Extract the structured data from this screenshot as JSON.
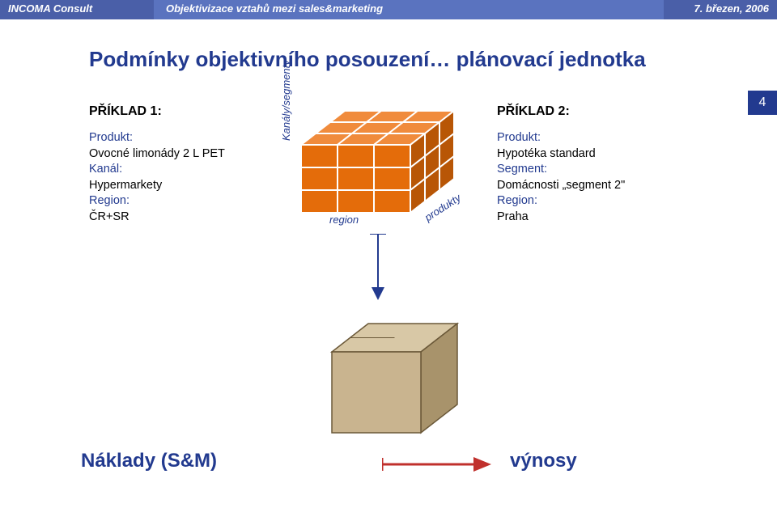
{
  "header": {
    "left": "INCOMA Consult",
    "mid": "Objektivizace vztahů mezi sales&marketing",
    "right": "7. březen, 2006",
    "bg_left": "#4a5fa8",
    "bg_mid": "#5a73bf",
    "bg_right": "#4a5fa8"
  },
  "page_number": "4",
  "title": "Podmínky objektivního posouzení… plánovací jednotka",
  "example1": {
    "label": "PŘÍKLAD 1:",
    "lines": [
      {
        "txt": "Produkt:",
        "color": "#223a8f"
      },
      {
        "txt": "Ovocné limonády 2 L PET",
        "color": "#000"
      },
      {
        "txt": "Kanál:",
        "color": "#223a8f"
      },
      {
        "txt": "Hypermarkety",
        "color": "#000"
      },
      {
        "txt": "Region:",
        "color": "#223a8f"
      },
      {
        "txt": "ČR+SR",
        "color": "#000"
      }
    ]
  },
  "example2": {
    "label": "PŘÍKLAD 2:",
    "lines": [
      {
        "txt": "Produkt:",
        "color": "#223a8f"
      },
      {
        "txt": "Hypotéka standard",
        "color": "#000"
      },
      {
        "txt": "Segment:",
        "color": "#223a8f"
      },
      {
        "txt": "Domácnosti „segment 2\"",
        "color": "#000"
      },
      {
        "txt": "Region:",
        "color": "#223a8f"
      },
      {
        "txt": "Praha",
        "color": "#000"
      }
    ]
  },
  "cube": {
    "axis_y": "Kanály/segmenty",
    "axis_x": "region",
    "axis_z": "produkty",
    "face_fill": "#e46c0a",
    "face_stroke": "#ffffff",
    "highlight_fill": "#f5d6a8",
    "top_fill": "#f08b3c",
    "side_fill": "#b85606"
  },
  "brown_cube": {
    "front": "#c9b48f",
    "top": "#d8c8a6",
    "side": "#a8936b",
    "stroke": "#6a5838"
  },
  "red_arrow": {
    "stroke": "#c0302c"
  },
  "down_arrow": {
    "stroke": "#223a8f"
  },
  "footer": {
    "left": "Náklady (S&M)",
    "right": "výnosy"
  }
}
